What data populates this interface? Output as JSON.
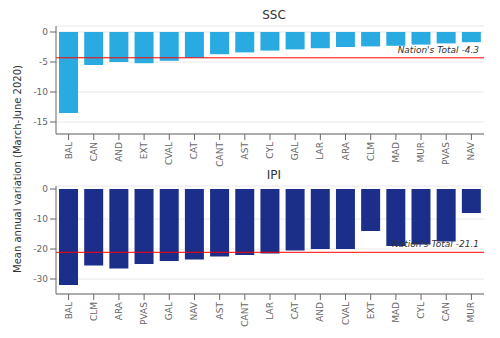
{
  "ylabel": "Mean annual variation (March-June 2020)",
  "chart_data": [
    {
      "type": "bar",
      "title": "SSC",
      "categories": [
        "BAL",
        "CAN",
        "AND",
        "EXT",
        "CVAL",
        "CAT",
        "CANT",
        "AST",
        "CYL",
        "GAL",
        "LAR",
        "ARA",
        "CLM",
        "MAD",
        "MUR",
        "PVAS",
        "NAV"
      ],
      "values": [
        -13.5,
        -5.5,
        -5.0,
        -5.2,
        -4.8,
        -4.3,
        -3.7,
        -3.4,
        -3.1,
        -2.9,
        -2.7,
        -2.5,
        -2.4,
        -2.3,
        -2.1,
        -1.9,
        -1.7
      ],
      "color": "#29ABE2",
      "ylim": [
        -17,
        1
      ],
      "yticks": [
        0,
        -5,
        -10,
        -15
      ],
      "grid": true,
      "reference_line": {
        "value": -4.3,
        "label": "Nation's Total -4.3",
        "color": "red"
      }
    },
    {
      "type": "bar",
      "title": "IPI",
      "categories": [
        "BAL",
        "CLM",
        "ARA",
        "PVAS",
        "GAL",
        "NAV",
        "AST",
        "CANT",
        "LAR",
        "CAT",
        "AND",
        "CVAL",
        "EXT",
        "MAD",
        "CYL",
        "CAN",
        "MUR"
      ],
      "values": [
        -32.0,
        -25.5,
        -26.5,
        -25.0,
        -24.0,
        -23.5,
        -22.5,
        -22.0,
        -21.5,
        -20.5,
        -20.0,
        -20.0,
        -14.0,
        -19.0,
        -18.5,
        -17.5,
        -8.0
      ],
      "color": "#1B2F8A",
      "ylim": [
        -35,
        1
      ],
      "yticks": [
        0,
        -10,
        -20,
        -30
      ],
      "grid": true,
      "reference_line": {
        "value": -21.1,
        "label": "Nation's Total -21.1",
        "color": "red"
      }
    }
  ]
}
